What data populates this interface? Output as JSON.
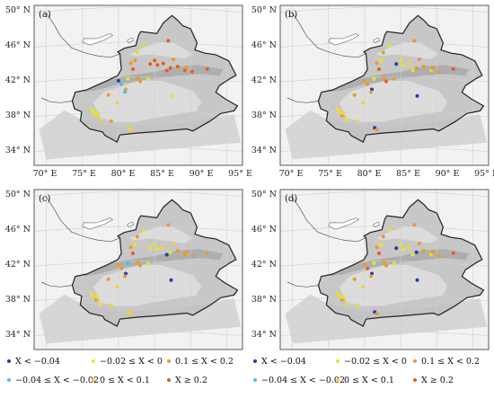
{
  "panels": [
    {
      "label": "(a)"
    },
    {
      "label": "(b)"
    },
    {
      "label": "(c)"
    },
    {
      "label": "(d)"
    }
  ],
  "lat_labels": [
    "50° N",
    "46° N",
    "42° N",
    "38° N",
    "34° N"
  ],
  "lon_labels": [
    "70° E",
    "75° E",
    "80° E",
    "85° E",
    "90° E",
    "95° E"
  ],
  "legend": {
    "items": [
      {
        "text": "X < −0.04",
        "color": "#1f3fb0"
      },
      {
        "text": "−0.04 ≤ X < −0.02",
        "color": "#39c6ee"
      },
      {
        "text": "−0.02 ≤ X < 0",
        "color": "#e6e622"
      },
      {
        "text": "0 ≤ X < 0.1",
        "color": "#f3d23a"
      },
      {
        "text": "0.1 ≤ X < 0.2",
        "color": "#ef9a24"
      },
      {
        "text": "X ≥ 0.2",
        "color": "#ec5a1b"
      }
    ]
  },
  "colors": {
    "map_background": "#f2f2f2",
    "basin_light": "#dcdcdc",
    "terrain_mid": "#bfbfbf",
    "terrain_dark": "#a8a8a8",
    "graticule": "#cfcfcf",
    "border": "#222222"
  }
}
